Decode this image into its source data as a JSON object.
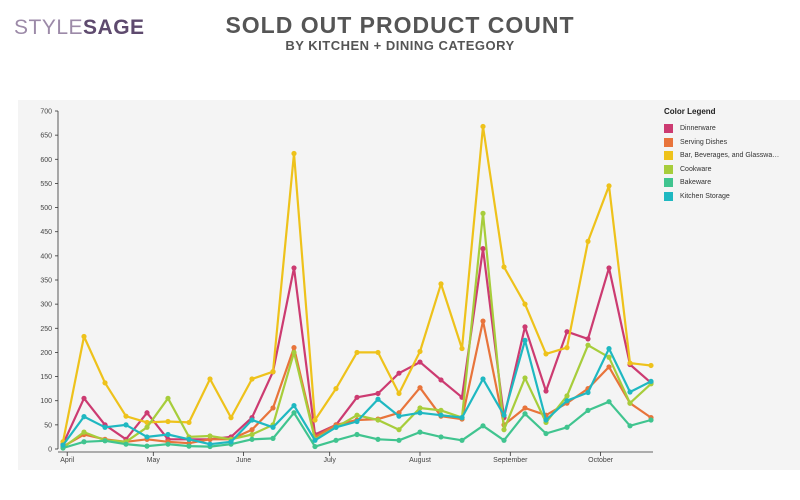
{
  "brand": {
    "logo_part1": "STYLE",
    "logo_part2": "SAGE"
  },
  "header": {
    "title": "SOLD OUT PRODUCT COUNT",
    "subtitle": "BY KITCHEN + DINING CATEGORY"
  },
  "chart_data": {
    "type": "line",
    "ylim": [
      0,
      700
    ],
    "yticks": [
      0,
      50,
      100,
      150,
      200,
      250,
      300,
      350,
      400,
      450,
      500,
      550,
      600,
      650,
      700
    ],
    "grid": false,
    "legend_title": "Color Legend",
    "legend_position": "top-right",
    "month_labels": [
      "April",
      "May",
      "June",
      "July",
      "August",
      "September",
      "October"
    ],
    "series": [
      {
        "name": "Dinnerware",
        "color": "#cc3b71",
        "values": [
          10,
          105,
          50,
          20,
          75,
          20,
          20,
          20,
          25,
          65,
          160,
          375,
          30,
          50,
          107,
          115,
          157,
          180,
          143,
          107,
          415,
          65,
          253,
          120,
          243,
          228,
          375,
          175,
          137
        ]
      },
      {
        "name": "Serving Dishes",
        "color": "#e8743b",
        "values": [
          5,
          30,
          20,
          15,
          20,
          15,
          12,
          20,
          20,
          40,
          85,
          210,
          25,
          50,
          60,
          62,
          75,
          127,
          68,
          62,
          265,
          50,
          85,
          70,
          95,
          125,
          170,
          95,
          65
        ]
      },
      {
        "name": "Bar, Beverages, and Glasswa…",
        "color": "#eec21b",
        "values": [
          15,
          233,
          137,
          68,
          55,
          57,
          55,
          145,
          65,
          145,
          160,
          612,
          60,
          125,
          200,
          200,
          115,
          202,
          342,
          208,
          668,
          377,
          300,
          197,
          210,
          430,
          545,
          178,
          173
        ]
      },
      {
        "name": "Cookware",
        "color": "#a7cd3b",
        "values": [
          3,
          35,
          18,
          15,
          45,
          105,
          25,
          27,
          20,
          30,
          50,
          200,
          20,
          45,
          70,
          60,
          40,
          85,
          80,
          65,
          488,
          40,
          147,
          55,
          110,
          215,
          190,
          95,
          135
        ]
      },
      {
        "name": "Bakeware",
        "color": "#40c48f",
        "values": [
          2,
          15,
          17,
          10,
          6,
          10,
          6,
          5,
          10,
          20,
          22,
          75,
          5,
          18,
          30,
          20,
          18,
          35,
          25,
          18,
          48,
          18,
          73,
          32,
          45,
          80,
          98,
          48,
          60
        ]
      },
      {
        "name": "Kitchen Storage",
        "color": "#1fb8c1",
        "values": [
          8,
          67,
          45,
          50,
          25,
          30,
          20,
          10,
          15,
          60,
          45,
          90,
          18,
          45,
          57,
          103,
          68,
          75,
          70,
          65,
          145,
          70,
          225,
          60,
          100,
          117,
          208,
          118,
          140
        ]
      }
    ]
  }
}
